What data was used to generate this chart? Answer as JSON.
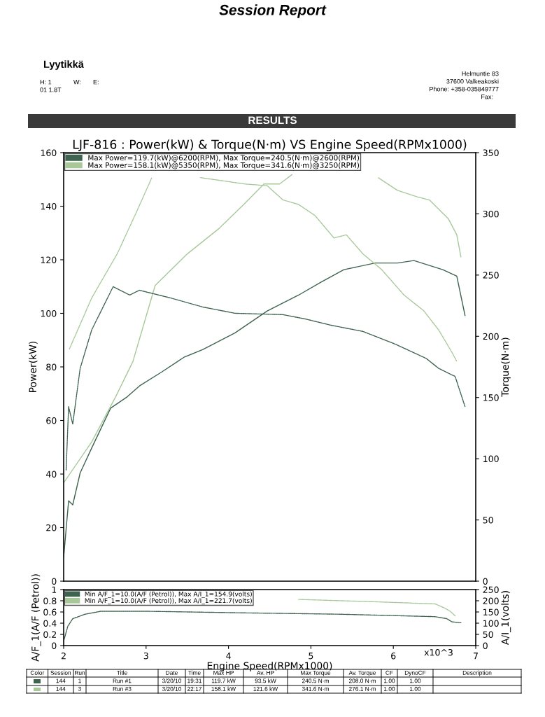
{
  "chart_data": [
    {
      "type": "line",
      "title": "LJF-816 : Power(kW) & Torque(N·m) VS Engine Speed(RPMx1000)",
      "ylabel": "Power(kW)",
      "y2label": "Torque(N·m)",
      "xlim": [
        2,
        7
      ],
      "ylim": [
        0,
        160
      ],
      "yticks": [
        0,
        20,
        40,
        60,
        80,
        100,
        120,
        140,
        160
      ],
      "y2lim": [
        0,
        350
      ],
      "y2ticks": [
        0,
        50,
        100,
        150,
        200,
        250,
        300,
        350
      ],
      "tick_labels": "y",
      "legend": "top left",
      "annotations": [
        "Session Report",
        "Lyytikkä",
        "H: 1",
        "W:",
        "E:",
        "01 1.8T",
        "Helmuntie 83",
        "37600 Valkeakoski",
        "Phone: +358-035849777",
        "Fax:",
        "RESULTS"
      ],
      "series": [
        {
          "name": "Max Power=119.7(kW)@6200(RPM), Max Torque=240.5(N·m)@2600(RPM)",
          "color": "#3e6450",
          "line_style": "solid",
          "x": [
            2.0,
            2.06,
            2.11,
            2.2,
            2.34,
            2.57,
            2.77,
            2.92,
            3.19,
            3.46,
            3.69,
            4.08,
            4.47,
            4.85,
            5.12,
            5.4,
            5.78,
            6.05,
            6.25,
            6.6,
            6.77,
            6.87
          ],
          "values": [
            8.9,
            30.0,
            28.5,
            40.4,
            49.7,
            64.6,
            68.8,
            72.9,
            78.1,
            83.6,
            86.5,
            92.7,
            100.9,
            106.8,
            111.6,
            116.3,
            118.8,
            118.8,
            119.7,
            116.3,
            113.9,
            99.2
          ]
        },
        {
          "name": "Max Power=158.1(kW)@5350(RPM), Max Torque=341.6(N·m)@3250(RPM)",
          "color": "#a8c89a",
          "line_style": "solid",
          "x": [
            2.0,
            2.34,
            2.63,
            2.84,
            3.11,
            3.5,
            3.89,
            4.2,
            4.43,
            4.62,
            4.77,
            5.3,
            5.82,
            6.05,
            6.29,
            6.44,
            6.67,
            6.77,
            6.82
          ],
          "values": [
            36.7,
            52.0,
            68.8,
            82.0,
            110.4,
            122.2,
            131.8,
            141.1,
            148.3,
            148.3,
            151.8,
            null,
            150.6,
            145.9,
            143.5,
            142.3,
            135.2,
            129.3,
            121.1
          ]
        },
        {
          "color": "#3e6450",
          "line_style": "dotted",
          "axis": "y2",
          "x": [
            2.03,
            2.06,
            2.11,
            2.2,
            2.34,
            2.6,
            2.8,
            2.92,
            3.31,
            3.69,
            4.08,
            4.66,
            4.93,
            5.24,
            5.63,
            6.02,
            6.4,
            6.55,
            6.75,
            6.87
          ],
          "values": [
            90.8,
            142.6,
            128.3,
            173.8,
            205.2,
            240.5,
            233.7,
            237.6,
            231.1,
            223.9,
            218.8,
            217.7,
            214.2,
            209.1,
            204.0,
            193.7,
            181.9,
            173.8,
            167.2,
            142.6
          ]
        },
        {
          "color": "#a8c89a",
          "line_style": "dotted",
          "axis": "y2",
          "x": [
            2.07,
            2.34,
            2.65,
            2.88,
            3.07,
            3.3,
            3.66,
            4.2,
            4.47,
            4.66,
            4.85,
            5.05,
            5.28,
            5.43,
            5.63,
            5.86,
            6.13,
            6.37,
            6.55,
            6.71,
            6.77
          ],
          "values": [
            189.7,
            231.3,
            267.4,
            301.0,
            329.6,
            null,
            329.6,
            324.4,
            323.0,
            311.4,
            307.7,
            298.6,
            280.3,
            282.9,
            267.4,
            254.4,
            233.7,
            220.8,
            205.2,
            187.1,
            179.5
          ]
        }
      ]
    },
    {
      "type": "line",
      "xlabel": "Engine Speed(RPMx1000)",
      "ylabel": "A/F_1(A/F (Petrol))",
      "y2label": "A/I_1(volts)",
      "xlim": [
        2,
        7
      ],
      "xticks": [
        2,
        3,
        4,
        5,
        6,
        7
      ],
      "ylim": [
        0,
        1
      ],
      "yticks": [
        0,
        0.2,
        0.4,
        0.6,
        0.8,
        1
      ],
      "y2lim": [
        0,
        250
      ],
      "y2ticks": [
        0,
        50,
        100,
        150,
        200,
        250
      ],
      "legend": "top left",
      "annotations": [
        "x10^3",
        "Color",
        "Session",
        "Run",
        "Title",
        "Date",
        "Time",
        "Max HP",
        "Av. HP",
        "Max Torque",
        "Av. Torque",
        "CF",
        "DynoCF",
        "Description",
        "144",
        "1",
        "Run #1",
        "3/20/10",
        "19:31",
        "119.7 kW",
        "93.5 kW",
        "240.5 N·m",
        "208.0 N·m",
        "1.00",
        "1.00",
        "144",
        "3",
        "Run #3",
        "3/20/10",
        "22:17",
        "158.1 kW",
        "121.6 kW",
        "341.6 N·m",
        "276.1 N·m",
        "1.00",
        "1.00"
      ],
      "series": [
        {
          "name": "Min A/F_1=10.0(A/F (Petrol)), Max A/I_1=154.9(volts)",
          "color": "#3e6450",
          "line_style": "dotted",
          "axis": "y2",
          "x": [
            2.0,
            2.05,
            2.11,
            2.26,
            2.45,
            3.03,
            4.19,
            5.35,
            6.51,
            6.65,
            6.71,
            6.82
          ],
          "values": [
            20,
            86,
            120,
            140,
            153,
            153,
            146,
            140,
            129,
            120,
            106,
            102
          ]
        },
        {
          "name": "Min A/F_1=10.0(A/F (Petrol)), Max A/I_1=221.7(volts)",
          "color": "#a8c89a",
          "line_style": "dotted",
          "axis": "y2",
          "x": [
            4.85,
            5.74,
            6.51,
            6.63,
            6.69,
            6.75
          ],
          "values": [
            206,
            196,
            186,
            166,
            153,
            133
          ]
        }
      ]
    }
  ]
}
